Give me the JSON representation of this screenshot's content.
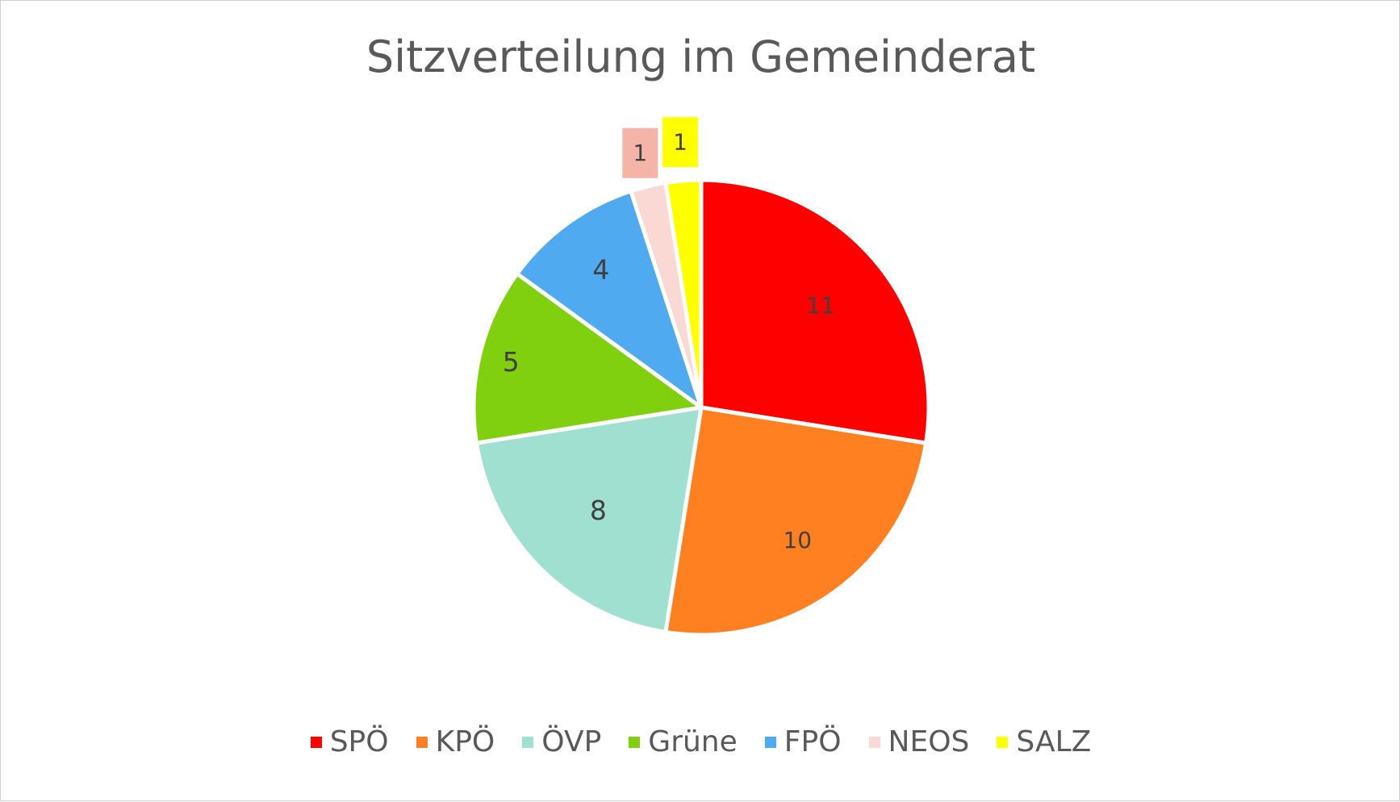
{
  "chart_data": {
    "type": "pie",
    "title": "Sitzverteilung im Gemeinderat",
    "categories": [
      "SPÖ",
      "KPÖ",
      "ÖVP",
      "Grüne",
      "FPÖ",
      "NEOS",
      "SALZ"
    ],
    "values": [
      11,
      10,
      8,
      5,
      4,
      1,
      1
    ],
    "data_labels": [
      "11",
      "10",
      "8",
      "5",
      "4",
      "1",
      "1"
    ],
    "colors": [
      "#ff0000",
      "#ff8020",
      "#a0e0d0",
      "#80d010",
      "#50aaf0",
      "#fad8d4",
      "#ffff00"
    ],
    "label_box_colors": [
      "",
      "",
      "",
      "",
      "",
      "#f5b4a8",
      "#ffff00"
    ],
    "legend_position": "bottom"
  }
}
